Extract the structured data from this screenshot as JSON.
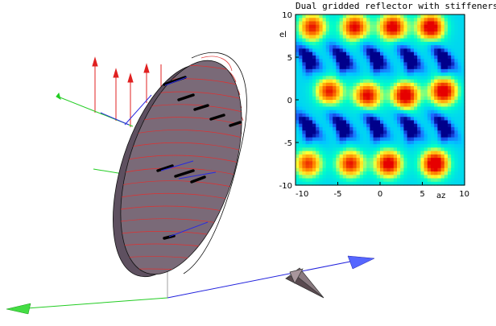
{
  "figure": {
    "plot_title": "Dual gridded reflector with stiffeners"
  },
  "chart_data": {
    "type": "heatmap",
    "title": "Dual gridded reflector with stiffeners",
    "xlabel": "az",
    "ylabel": "el",
    "xlim": [
      -10,
      10
    ],
    "ylim": [
      -10,
      10
    ],
    "xticks": [
      -10,
      -5,
      0,
      5,
      10
    ],
    "yticks": [
      -10,
      -5,
      0,
      5,
      10
    ],
    "colormap": [
      "#00008b",
      "#1e64ff",
      "#00c8ff",
      "#00ffc8",
      "#ffff32",
      "#ff8c00",
      "#e60000"
    ],
    "hot_spots": [
      {
        "az": -8,
        "el": 8.5,
        "level": 0.8
      },
      {
        "az": -3,
        "el": 8.5,
        "level": 0.85
      },
      {
        "az": 1.5,
        "el": 8.5,
        "level": 0.9
      },
      {
        "az": 6,
        "el": 8.5,
        "level": 0.95
      },
      {
        "az": -6,
        "el": 1,
        "level": 0.8
      },
      {
        "az": -1.5,
        "el": 0.5,
        "level": 0.85
      },
      {
        "az": 3,
        "el": 0.5,
        "level": 0.95
      },
      {
        "az": 7.5,
        "el": 1,
        "level": 0.95
      },
      {
        "az": -8.5,
        "el": -7.5,
        "level": 0.75
      },
      {
        "az": -3.5,
        "el": -7.5,
        "level": 0.8
      },
      {
        "az": 1,
        "el": -7.5,
        "level": 0.9
      },
      {
        "az": 6.5,
        "el": -7.5,
        "level": 1.0
      }
    ],
    "cold_marks": [
      {
        "az": -8.5,
        "el": 5
      },
      {
        "az": -4.5,
        "el": 5
      },
      {
        "az": -0.5,
        "el": 5
      },
      {
        "az": 3.5,
        "el": 5
      },
      {
        "az": 7.5,
        "el": 5
      },
      {
        "az": -8.5,
        "el": -3
      },
      {
        "az": -4.5,
        "el": -3
      },
      {
        "az": -0.5,
        "el": -3
      },
      {
        "az": 3.5,
        "el": -3
      },
      {
        "az": 7.5,
        "el": -3
      }
    ]
  }
}
